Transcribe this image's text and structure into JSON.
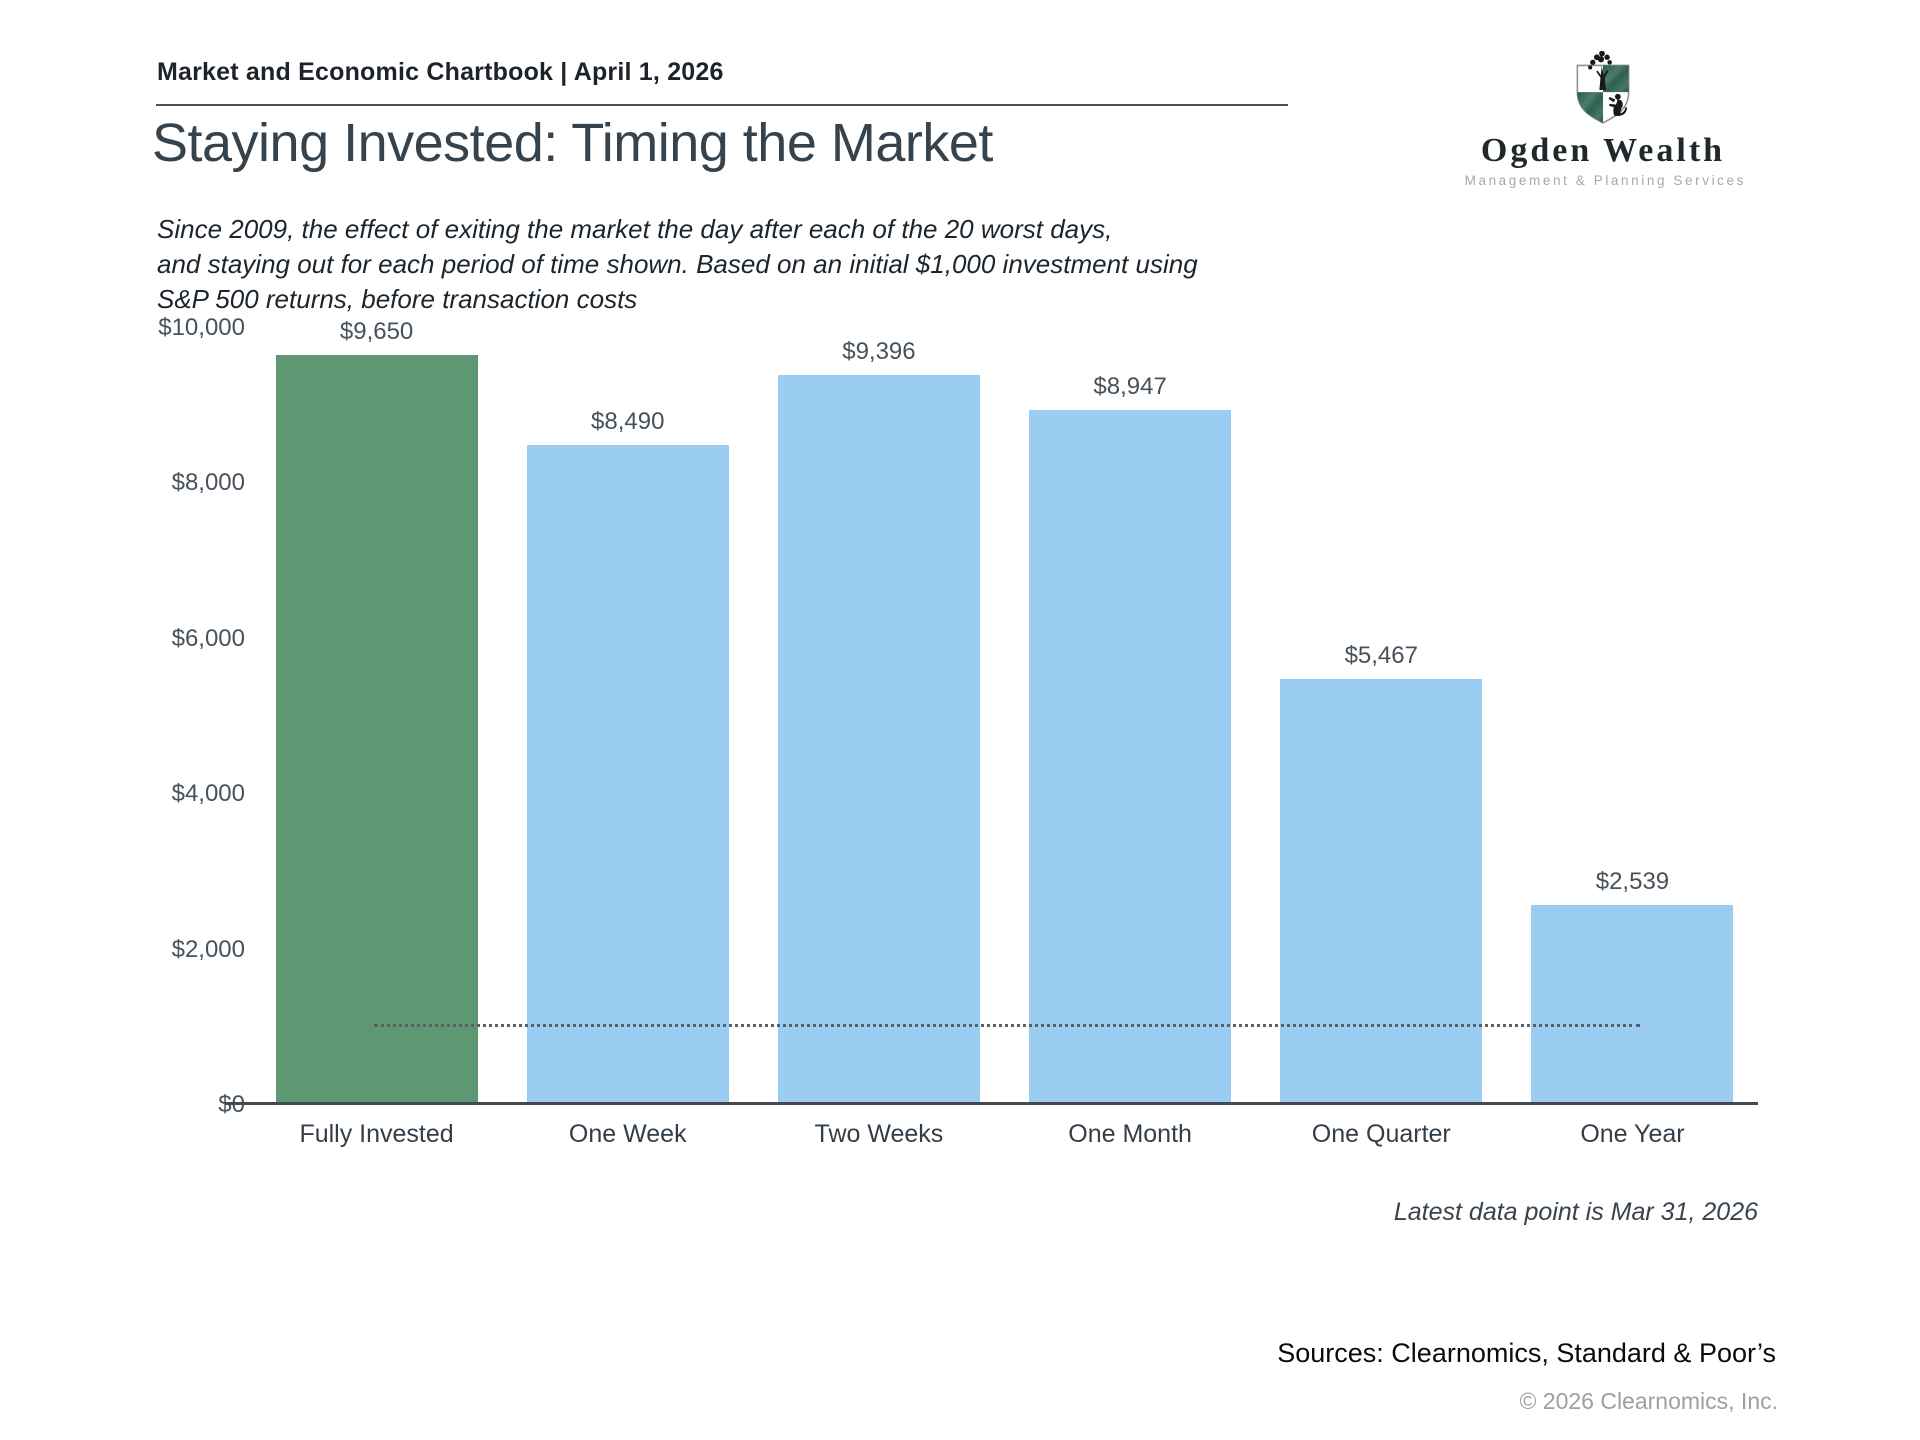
{
  "header": {
    "chartbook_label": "Market and Economic Chartbook | April 1, 2026"
  },
  "logo": {
    "name": "Ogden Wealth",
    "tagline": "Management & Planning Services",
    "shield_green": "#2e6052"
  },
  "title": "Staying Invested: Timing the Market",
  "subtitle": "Since 2009, the effect of exiting the market the day after each of the 20 worst days,\nand staying out for each period of time shown. Based on an initial $1,000 investment using\nS&P 500 returns, before transaction costs",
  "chart_data": {
    "type": "bar",
    "categories": [
      "Fully Invested",
      "One Week",
      "Two Weeks",
      "One Month",
      "One Quarter",
      "One Year"
    ],
    "values": [
      9650,
      8490,
      9396,
      8947,
      5467,
      2539
    ],
    "value_labels": [
      "$9,650",
      "$8,490",
      "$9,396",
      "$8,947",
      "$5,467",
      "$2,539"
    ],
    "bar_colors": [
      "#5d9872",
      "#9bcdf2",
      "#9bcdf2",
      "#9bcdf2",
      "#9bcdf2",
      "#9bcdf2"
    ],
    "highlight_color": "#5d9872",
    "series_color": "#9bcdf2",
    "title": "Staying Invested: Timing the Market",
    "xlabel": "",
    "ylabel": "",
    "ylim": [
      0,
      10000
    ],
    "y_ticks": [
      "$10,000",
      "$8,000",
      "$6,000",
      "$4,000",
      "$2,000",
      "$0"
    ],
    "grid": false,
    "legend": false,
    "reference_line": {
      "value": 1000,
      "style": "dotted",
      "meaning": "initial $1,000 investment level"
    }
  },
  "footnote": "Latest data point is Mar 31, 2026",
  "sources": "Sources: Clearnomics, Standard & Poor’s",
  "copyright": "© 2026 Clearnomics, Inc."
}
